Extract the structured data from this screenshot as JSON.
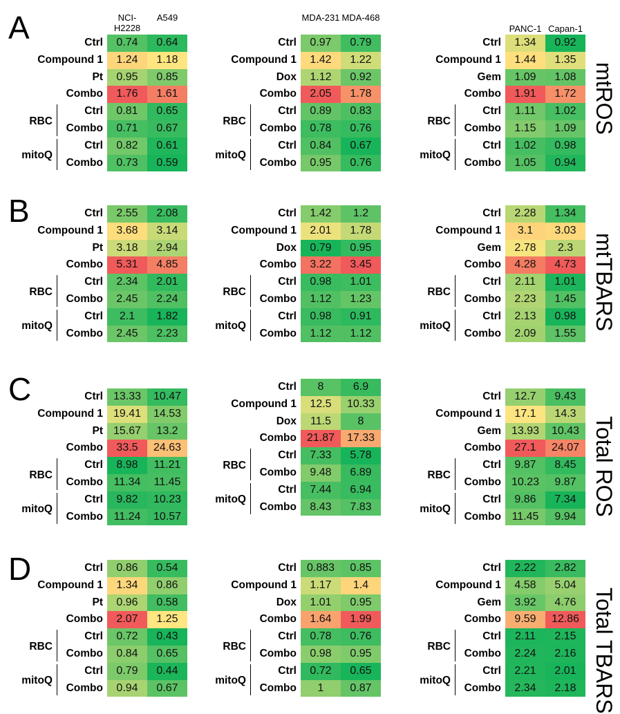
{
  "panel_letters": [
    "A",
    "B",
    "C",
    "D"
  ],
  "panel_titles": [
    "mtROS",
    "mtTBARS",
    "Total ROS",
    "Total TBARS"
  ],
  "group_labels": [
    "RBC",
    "mitoQ"
  ],
  "color_scale": {
    "low": "#18b45a",
    "mid": "#ffe680",
    "high": "#f05a5a"
  },
  "chart_data": [
    {
      "type": "heatmap",
      "panel": "A",
      "title": "mtROS",
      "tables": [
        {
          "columns": [
            "NCI-H2228",
            "A549"
          ],
          "rows": [
            "Ctrl",
            "Compound 1",
            "Pt",
            "Combo",
            "Ctrl",
            "Combo",
            "Ctrl",
            "Combo"
          ],
          "values": [
            [
              0.74,
              0.64
            ],
            [
              1.24,
              1.18
            ],
            [
              0.95,
              0.85
            ],
            [
              1.76,
              1.61
            ],
            [
              0.81,
              0.65
            ],
            [
              0.71,
              0.67
            ],
            [
              0.82,
              0.61
            ],
            [
              0.73,
              0.59
            ]
          ]
        },
        {
          "columns": [
            "MDA-231",
            "MDA-468"
          ],
          "rows": [
            "Ctrl",
            "Compound 1",
            "Dox",
            "Combo",
            "Ctrl",
            "Combo",
            "Ctrl",
            "Combo"
          ],
          "values": [
            [
              0.97,
              0.79
            ],
            [
              1.42,
              1.22
            ],
            [
              1.12,
              0.92
            ],
            [
              2.05,
              1.78
            ],
            [
              0.89,
              0.83
            ],
            [
              0.78,
              0.76
            ],
            [
              0.84,
              0.67
            ],
            [
              0.95,
              0.76
            ]
          ]
        },
        {
          "columns": [
            "PANC-1",
            "Capan-1"
          ],
          "rows": [
            "Ctrl",
            "Compound 1",
            "Gem",
            "Combo",
            "Ctrl",
            "Combo",
            "Ctrl",
            "Combo"
          ],
          "values": [
            [
              1.34,
              0.92
            ],
            [
              1.44,
              1.35
            ],
            [
              1.09,
              1.08
            ],
            [
              1.91,
              1.72
            ],
            [
              1.11,
              1.02
            ],
            [
              1.15,
              1.09
            ],
            [
              1.02,
              0.98
            ],
            [
              1.05,
              0.94
            ]
          ]
        }
      ]
    },
    {
      "type": "heatmap",
      "panel": "B",
      "title": "mtTBARS",
      "tables": [
        {
          "columns": [
            "NCI-H2228",
            "A549"
          ],
          "rows": [
            "Ctrl",
            "Compound 1",
            "Pt",
            "Combo",
            "Ctrl",
            "Combo",
            "Ctrl",
            "Combo"
          ],
          "values": [
            [
              2.55,
              2.08
            ],
            [
              3.68,
              3.14
            ],
            [
              3.18,
              2.94
            ],
            [
              5.31,
              4.85
            ],
            [
              2.34,
              2.01
            ],
            [
              2.45,
              2.24
            ],
            [
              2.1,
              1.82
            ],
            [
              2.45,
              2.23
            ]
          ]
        },
        {
          "columns": [
            "MDA-231",
            "MDA-468"
          ],
          "rows": [
            "Ctrl",
            "Compound 1",
            "Dox",
            "Combo",
            "Ctrl",
            "Combo",
            "Ctrl",
            "Combo"
          ],
          "values": [
            [
              1.42,
              1.2
            ],
            [
              2.01,
              1.78
            ],
            [
              0.79,
              0.95
            ],
            [
              3.22,
              3.45
            ],
            [
              0.98,
              1.01
            ],
            [
              1.12,
              1.23
            ],
            [
              0.98,
              0.91
            ],
            [
              1.12,
              1.12
            ]
          ]
        },
        {
          "columns": [
            "PANC-1",
            "Capan-1"
          ],
          "rows": [
            "Ctrl",
            "Compound 1",
            "Gem",
            "Combo",
            "Ctrl",
            "Combo",
            "Ctrl",
            "Combo"
          ],
          "values": [
            [
              2.28,
              1.34
            ],
            [
              3.1,
              3.03
            ],
            [
              2.78,
              2.3
            ],
            [
              4.28,
              4.73
            ],
            [
              2.11,
              1.01
            ],
            [
              2.23,
              1.45
            ],
            [
              2.13,
              0.98
            ],
            [
              2.09,
              1.55
            ]
          ]
        }
      ]
    },
    {
      "type": "heatmap",
      "panel": "C",
      "title": "Total ROS",
      "tables": [
        {
          "columns": [
            "NCI-H2228",
            "A549"
          ],
          "rows": [
            "Ctrl",
            "Compound 1",
            "Pt",
            "Combo",
            "Ctrl",
            "Combo",
            "Ctrl",
            "Combo"
          ],
          "values": [
            [
              13.33,
              10.47
            ],
            [
              19.41,
              14.53
            ],
            [
              15.67,
              13.2
            ],
            [
              33.5,
              24.63
            ],
            [
              8.98,
              11.21
            ],
            [
              11.34,
              11.45
            ],
            [
              9.82,
              10.23
            ],
            [
              11.24,
              10.57
            ]
          ]
        },
        {
          "columns": [
            "MDA-231",
            "MDA-468"
          ],
          "rows": [
            "Ctrl",
            "Compound 1",
            "Dox",
            "Combo",
            "Ctrl",
            "Combo",
            "Ctrl",
            "Combo"
          ],
          "values": [
            [
              8,
              6.9
            ],
            [
              12.5,
              10.33
            ],
            [
              11.5,
              8
            ],
            [
              21.87,
              17.33
            ],
            [
              7.33,
              5.78
            ],
            [
              9.48,
              6.89
            ],
            [
              7.44,
              6.94
            ],
            [
              8.43,
              7.83
            ]
          ]
        },
        {
          "columns": [
            "PANC-1",
            "Capan-1"
          ],
          "rows": [
            "Ctrl",
            "Compound 1",
            "Gem",
            "Combo",
            "Ctrl",
            "Combo",
            "Ctrl",
            "Combo"
          ],
          "values": [
            [
              12.7,
              9.43
            ],
            [
              17.1,
              14.3
            ],
            [
              13.93,
              10.43
            ],
            [
              27.1,
              24.07
            ],
            [
              9.87,
              8.45
            ],
            [
              10.23,
              9.87
            ],
            [
              9.86,
              7.34
            ],
            [
              11.45,
              9.94
            ]
          ]
        }
      ]
    },
    {
      "type": "heatmap",
      "panel": "D",
      "title": "Total TBARS",
      "tables": [
        {
          "columns": [
            "NCI-H2228",
            "A549"
          ],
          "rows": [
            "Ctrl",
            "Compound 1",
            "Pt",
            "Combo",
            "Ctrl",
            "Combo",
            "Ctrl",
            "Combo"
          ],
          "values": [
            [
              0.86,
              0.54
            ],
            [
              1.34,
              0.86
            ],
            [
              0.96,
              0.58
            ],
            [
              2.07,
              1.25
            ],
            [
              0.72,
              0.43
            ],
            [
              0.84,
              0.65
            ],
            [
              0.79,
              0.44
            ],
            [
              0.94,
              0.67
            ]
          ]
        },
        {
          "columns": [
            "MDA-231",
            "MDA-468"
          ],
          "rows": [
            "Ctrl",
            "Compound 1",
            "Dox",
            "Combo",
            "Ctrl",
            "Combo",
            "Ctrl",
            "Combo"
          ],
          "values": [
            [
              0.883,
              0.85
            ],
            [
              1.17,
              1.4
            ],
            [
              1.01,
              0.95
            ],
            [
              1.64,
              1.99
            ],
            [
              0.78,
              0.76
            ],
            [
              0.98,
              0.95
            ],
            [
              0.72,
              0.65
            ],
            [
              1,
              0.87
            ]
          ]
        },
        {
          "columns": [
            "PANC-1",
            "Capan-1"
          ],
          "rows": [
            "Ctrl",
            "Compound 1",
            "Gem",
            "Combo",
            "Ctrl",
            "Combo",
            "Ctrl",
            "Combo"
          ],
          "values": [
            [
              2.22,
              2.82
            ],
            [
              4.58,
              5.04
            ],
            [
              3.92,
              4.76
            ],
            [
              9.59,
              12.86
            ],
            [
              2.11,
              2.15
            ],
            [
              2.24,
              2.16
            ],
            [
              2.21,
              2.01
            ],
            [
              2.34,
              2.18
            ]
          ]
        }
      ]
    }
  ]
}
